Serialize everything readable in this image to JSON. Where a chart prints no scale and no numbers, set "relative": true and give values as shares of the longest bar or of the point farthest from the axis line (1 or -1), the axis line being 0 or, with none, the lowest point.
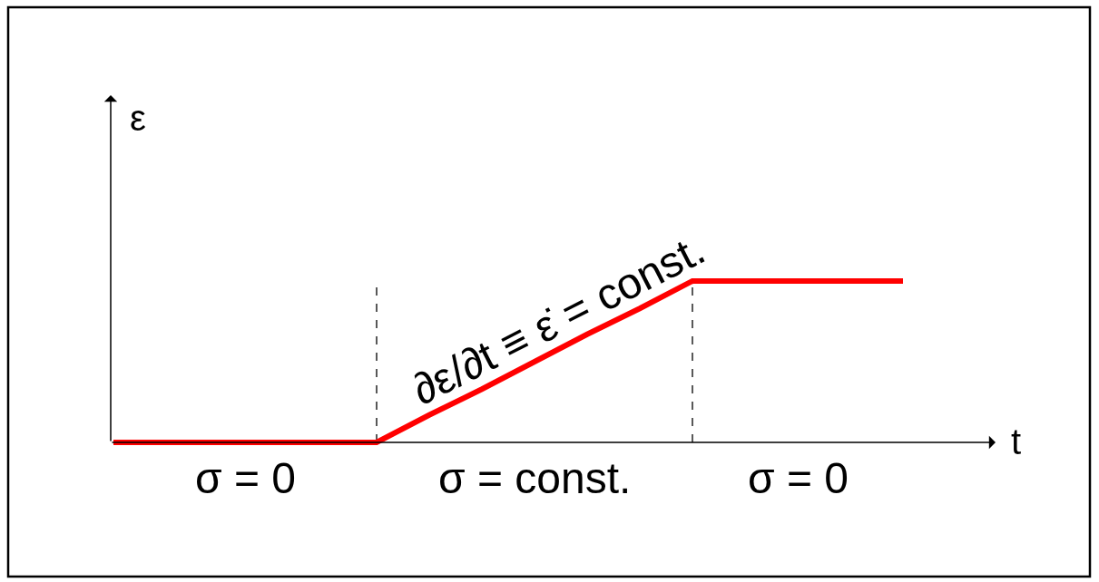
{
  "chart_data": {
    "type": "line",
    "relative": true,
    "xlabel": "t",
    "ylabel": "ε",
    "categories": [
      null,
      null,
      null,
      null,
      null,
      null,
      null,
      null,
      null,
      null,
      null,
      null,
      null,
      null,
      null,
      null
    ],
    "series": [
      {
        "color": "#ff0000",
        "values": [
          0,
          0,
          0,
          0,
          0,
          0,
          0.17,
          0.33,
          0.5,
          0.67,
          0.83,
          1,
          1,
          1,
          1,
          1
        ]
      }
    ],
    "annotations": [
      "∂ε/∂t ≡ ε̇ = const.",
      "σ = 0",
      "σ = const.",
      "σ = 0"
    ],
    "grid": "x",
    "tick_labels": false,
    "marker": "none",
    "line_style": "solid"
  }
}
